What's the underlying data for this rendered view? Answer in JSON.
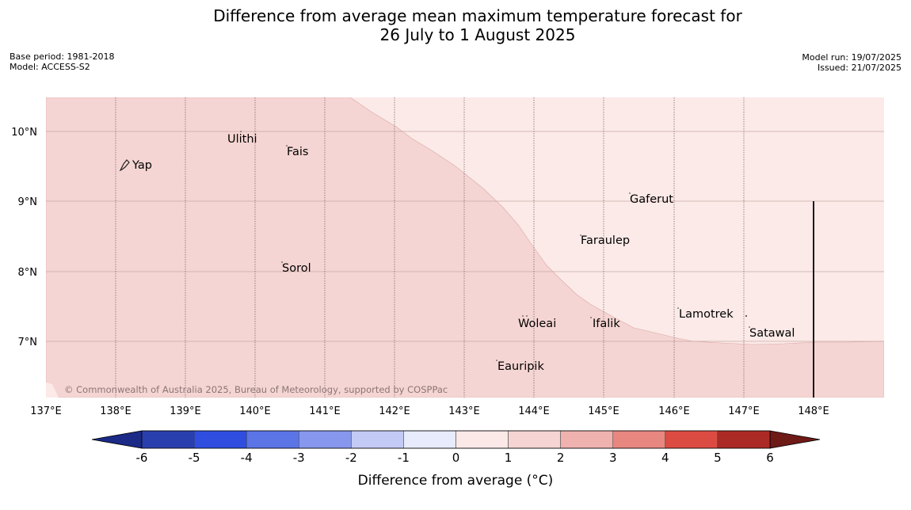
{
  "title": {
    "line1": "Difference from average mean maximum temperature forecast for",
    "line2": "26 July to 1 August 2025"
  },
  "meta_left": {
    "base_period": "Base period: 1981-2018",
    "model": "Model: ACCESS-S2"
  },
  "meta_right": {
    "model_run": "Model run: 19/07/2025",
    "issued": "Issued: 21/07/2025"
  },
  "copyright": "© Commonwealth of Australia 2025, Bureau of Meteorology, supported by COSPPac",
  "lon_labels": [
    "137°E",
    "138°E",
    "139°E",
    "140°E",
    "141°E",
    "142°E",
    "143°E",
    "144°E",
    "145°E",
    "146°E",
    "147°E",
    "148°E"
  ],
  "lat_labels": [
    "10°N",
    "9°N",
    "8°N",
    "7°N"
  ],
  "places": [
    "Yap",
    "Ulithi",
    "Fais",
    "Gaferut",
    "Faraulep",
    "Sorol",
    "Lamotrek",
    "Woleai",
    "Ifalik",
    "Satawal",
    "Eauripik"
  ],
  "colorbar": {
    "ticks": [
      "-6",
      "-5",
      "-4",
      "-3",
      "-2",
      "-1",
      "0",
      "1",
      "2",
      "3",
      "4",
      "5",
      "6"
    ],
    "label": "Difference from average (°C)",
    "colors": [
      "#2a3fae",
      "#2f4ee0",
      "#5b74e6",
      "#8797ee",
      "#c3caf6",
      "#e8ebfc",
      "#fbe9e8",
      "#f5d4d3",
      "#f0b2ae",
      "#e88680",
      "#dc4b42",
      "#ac2a26"
    ],
    "under_color": "#1b2a86",
    "over_color": "#6e1a17"
  },
  "map_colors": {
    "zone_0_1": "#fbeae8",
    "zone_1_2": "#f5d5d3"
  }
}
